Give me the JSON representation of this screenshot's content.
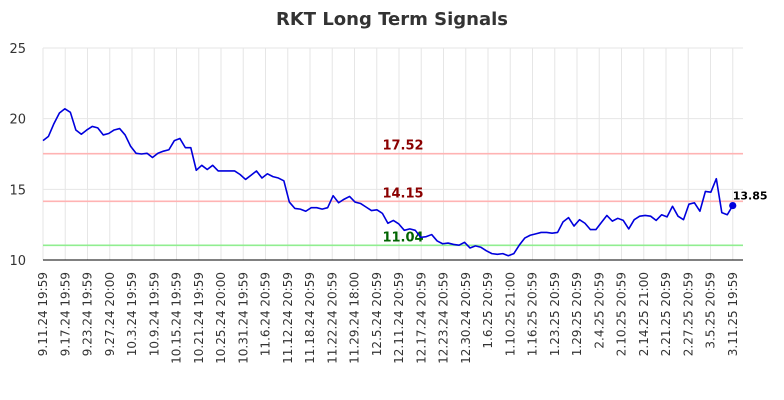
{
  "chart_data": {
    "type": "line",
    "title": "RKT Long Term Signals",
    "ylim": [
      10,
      25
    ],
    "y_ticks": [
      "10",
      "15",
      "20",
      "25"
    ],
    "grid": true,
    "x_tick_labels": [
      "9.11.24 19:59",
      "9.17.24 19:59",
      "9.23.24 19:59",
      "9.27.24 20:00",
      "10.3.24 19:59",
      "10.9.24 19:59",
      "10.15.24 19:59",
      "10.21.24 19:59",
      "10.25.24 20:00",
      "10.31.24 19:59",
      "11.6.24 20:59",
      "11.12.24 20:59",
      "11.18.24 20:59",
      "11.22.24 20:59",
      "11.29.24 18:00",
      "12.5.24 20:59",
      "12.11.24 20:59",
      "12.17.24 20:59",
      "12.23.24 20:59",
      "12.30.24 20:59",
      "1.6.25 20:59",
      "1.10.25 21:00",
      "1.16.25 20:59",
      "1.23.25 20:59",
      "1.29.25 20:59",
      "2.4.25 20:59",
      "2.10.25 20:59",
      "2.14.25 21:00",
      "2.21.25 20:59",
      "2.27.25 20:59",
      "3.5.25 20:59",
      "3.11.25 19:59"
    ],
    "series": [
      {
        "color": "#0000dd",
        "values": [
          18.45,
          18.75,
          19.65,
          20.4,
          20.7,
          20.45,
          19.2,
          18.9,
          19.2,
          19.45,
          19.35,
          18.85,
          18.95,
          19.2,
          19.3,
          18.85,
          18.05,
          17.55,
          17.5,
          17.55,
          17.25,
          17.55,
          17.7,
          17.8,
          18.45,
          18.6,
          17.95,
          17.95,
          16.35,
          16.7,
          16.4,
          16.7,
          16.3,
          16.3,
          16.3,
          16.3,
          16.05,
          15.7,
          16.0,
          16.3,
          15.8,
          16.1,
          15.9,
          15.8,
          15.6,
          14.1,
          13.65,
          13.6,
          13.45,
          13.7,
          13.7,
          13.6,
          13.7,
          14.55,
          14.05,
          14.3,
          14.5,
          14.1,
          14.0,
          13.75,
          13.5,
          13.55,
          13.3,
          12.6,
          12.8,
          12.55,
          12.1,
          12.2,
          12.1,
          11.6,
          11.65,
          11.8,
          11.35,
          11.15,
          11.2,
          11.1,
          11.05,
          11.25,
          10.85,
          11.0,
          10.9,
          10.65,
          10.45,
          10.4,
          10.45,
          10.3,
          10.45,
          11.05,
          11.55,
          11.75,
          11.85,
          11.95,
          11.95,
          11.9,
          11.95,
          12.7,
          13.0,
          12.4,
          12.85,
          12.6,
          12.15,
          12.15,
          12.65,
          13.15,
          12.75,
          12.95,
          12.8,
          12.2,
          12.85,
          13.1,
          13.15,
          13.1,
          12.8,
          13.2,
          13.05,
          13.8,
          13.1,
          12.85,
          13.95,
          14.05,
          13.45,
          14.85,
          14.8,
          15.75,
          13.35,
          13.2,
          13.85
        ]
      }
    ],
    "reference_lines": [
      {
        "value": 17.52,
        "label": "17.52",
        "line_color": "#ffb3b3",
        "label_color": "#8b0000"
      },
      {
        "value": 14.15,
        "label": "14.15",
        "line_color": "#ffb3b3",
        "label_color": "#8b0000"
      },
      {
        "value": 11.04,
        "label": "11.04",
        "line_color": "#90ee90",
        "label_color": "#006400"
      }
    ],
    "last_point": {
      "value": 13.85,
      "label": "13.85"
    }
  }
}
